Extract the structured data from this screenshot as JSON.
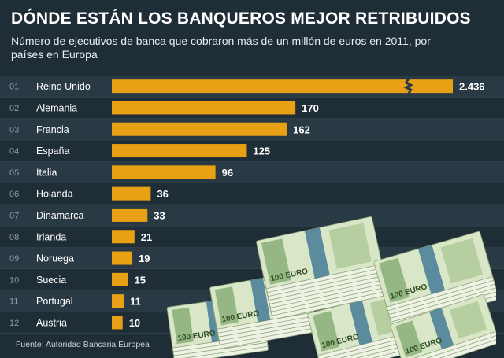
{
  "title": "DÓNDE ESTÁN LOS BANQUEROS MEJOR RETRIBUIDOS",
  "subtitle": "Número de ejecutivos de banca que cobraron más de un millón de euros en 2011, por países en Europa",
  "source": "Fuente: Autoridad Bancaria Europea",
  "colors": {
    "background": "#1f2d36",
    "row_alt": "#2a3a45",
    "bar": "#e8a014",
    "text": "#ffffff",
    "muted": "#8d9aa3"
  },
  "chart_data": {
    "type": "bar",
    "orientation": "horizontal",
    "categories": [
      "Reino Unido",
      "Alemania",
      "Francia",
      "España",
      "Italia",
      "Holanda",
      "Dinamarca",
      "Irlanda",
      "Noruega",
      "Suecia",
      "Portugal",
      "Austria"
    ],
    "ranks": [
      "01",
      "02",
      "03",
      "04",
      "05",
      "06",
      "07",
      "08",
      "09",
      "10",
      "11",
      "12"
    ],
    "values": [
      2436,
      170,
      162,
      125,
      96,
      36,
      33,
      21,
      19,
      15,
      11,
      10
    ],
    "value_labels": [
      "2.436",
      "170",
      "162",
      "125",
      "96",
      "36",
      "33",
      "21",
      "19",
      "15",
      "11",
      "10"
    ],
    "broken_axis_category": "Reino Unido",
    "title": "DÓNDE ESTÁN LOS BANQUEROS MEJOR RETRIBUIDOS",
    "xlabel": "",
    "ylabel": "",
    "grid": false,
    "legend": "none"
  },
  "decoration": {
    "banknote_label": "100 EURO"
  }
}
